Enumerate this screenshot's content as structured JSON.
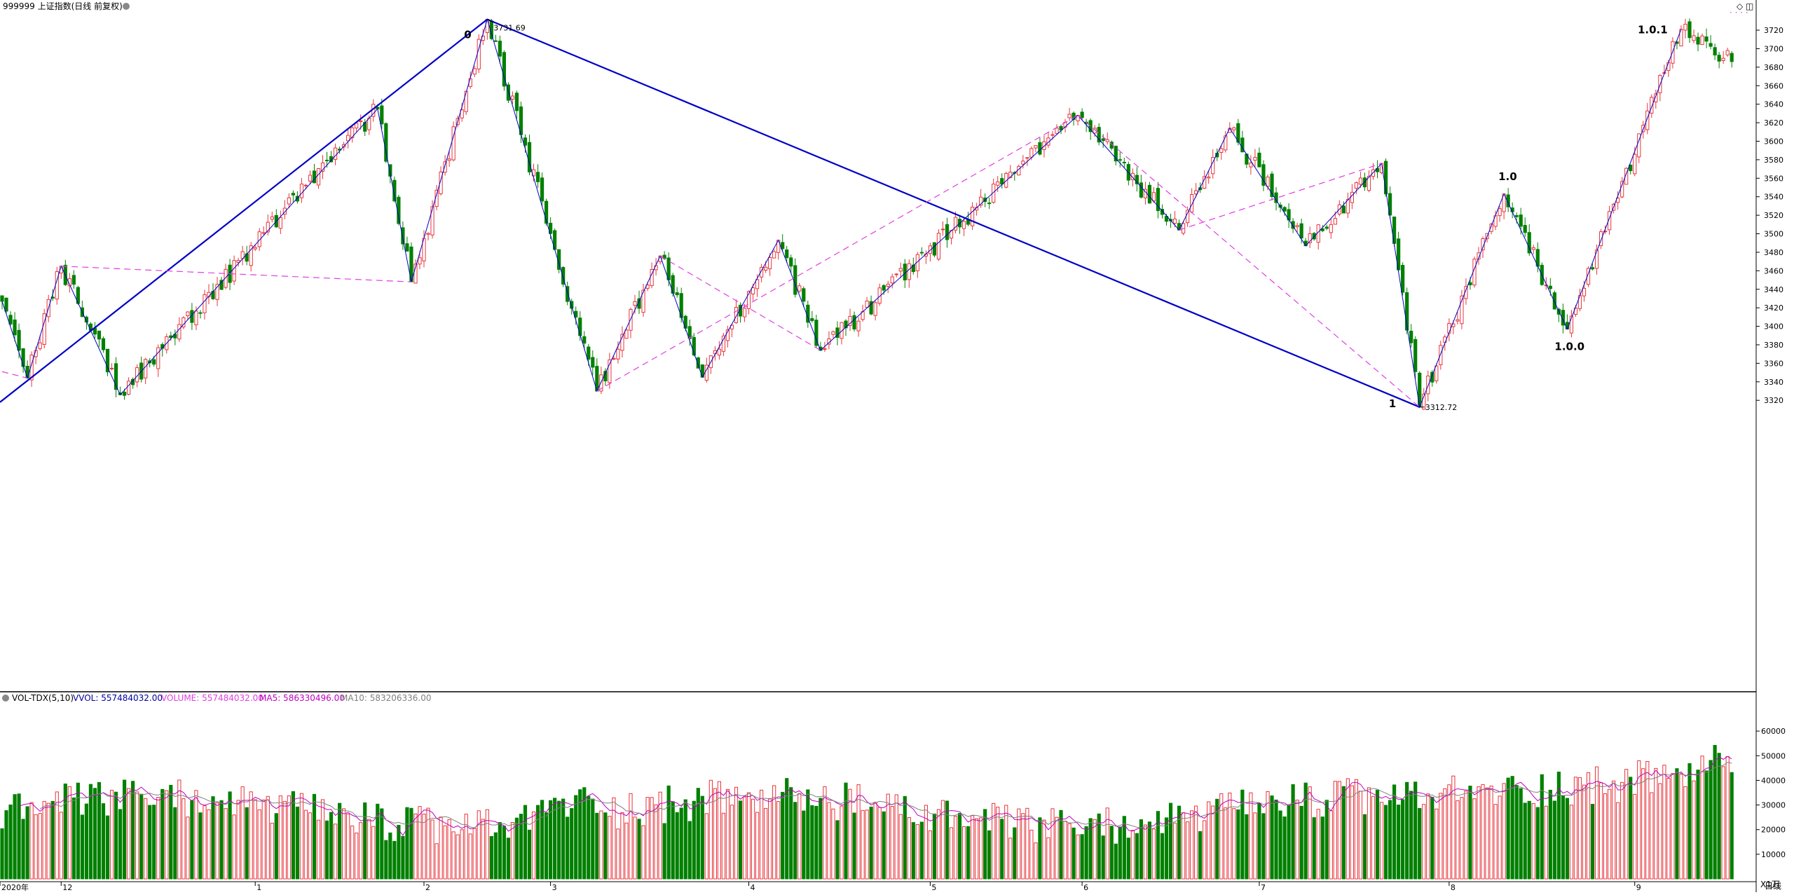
{
  "header": {
    "symbol_title": "999999 上证指数(日线 前复权)",
    "window_controls": "◇ ◫",
    "dots": "· · · ·"
  },
  "volume_header": {
    "indicator": "VOL-TDX(5,10)",
    "vvol": "VVOL: 557484032.00",
    "volume": "VOLUME: 557484032.00",
    "ma5": "MA5: 586330496.00",
    "ma10": "MA10: 583206336.00"
  },
  "price_axis_ticks": [
    "3720",
    "3700",
    "3680",
    "3660",
    "3640",
    "3620",
    "3600",
    "3580",
    "3560",
    "3540",
    "3520",
    "3500",
    "3480",
    "3460",
    "3440",
    "3420",
    "3400",
    "3380",
    "3360",
    "3340",
    "3320"
  ],
  "volume_axis_ticks": [
    "60000",
    "50000",
    "40000",
    "30000",
    "20000",
    "10000"
  ],
  "volume_axis_unit": "X1万",
  "period_label": "日线",
  "date_axis": [
    {
      "label": "2020年",
      "idx": 0
    },
    {
      "label": "12",
      "idx": 14
    },
    {
      "label": "1",
      "idx": 60
    },
    {
      "label": "2",
      "idx": 100
    },
    {
      "label": "3",
      "idx": 130
    },
    {
      "label": "4",
      "idx": 177
    },
    {
      "label": "5",
      "idx": 220
    },
    {
      "label": "6",
      "idx": 256
    },
    {
      "label": "7",
      "idx": 298
    },
    {
      "label": "8",
      "idx": 343
    },
    {
      "label": "9",
      "idx": 387
    }
  ],
  "annotations": {
    "high_value": "3731.69",
    "low_value": "3312.72",
    "wave_0": "0",
    "wave_1": "1",
    "wave_1_0": "1.0",
    "wave_1_0_0": "1.0.0",
    "wave_1_0_1": "1.0.1"
  },
  "colors": {
    "up": "#e8343c",
    "down": "#008000",
    "wave_line": "#0000c8",
    "dashed": "#e040e0",
    "ma5": "#c000c0",
    "ma10": "#808080",
    "axis_text": "#000000",
    "grid": "#c8c8c8"
  },
  "chart_data": [
    {
      "type": "candlestick",
      "title": "999999 上证指数(日线 前复权)",
      "ylim": [
        3305,
        3742
      ],
      "annotated_high": 3731.69,
      "annotated_low": 3312.72,
      "wave_points": [
        {
          "label": "0",
          "idx": 115,
          "price": 3731.69
        },
        {
          "label": "1",
          "idx": 336,
          "price": 3312.72
        },
        {
          "label": "1.0",
          "idx": 356,
          "price": 3543
        },
        {
          "label": "1.0.0",
          "idx": 371,
          "price": 3397
        },
        {
          "label": "1.0.1",
          "idx": 398,
          "price": 3721
        }
      ],
      "pivots": [
        {
          "idx": 0,
          "price": 3427
        },
        {
          "idx": 6,
          "price": 3344
        },
        {
          "idx": 14,
          "price": 3465
        },
        {
          "idx": 28,
          "price": 3326
        },
        {
          "idx": 89,
          "price": 3635
        },
        {
          "idx": 97,
          "price": 3448
        },
        {
          "idx": 115,
          "price": 3731.69
        },
        {
          "idx": 131,
          "price": 3483
        },
        {
          "idx": 141,
          "price": 3330
        },
        {
          "idx": 156,
          "price": 3476
        },
        {
          "idx": 166,
          "price": 3345
        },
        {
          "idx": 184,
          "price": 3493
        },
        {
          "idx": 194,
          "price": 3374
        },
        {
          "idx": 255,
          "price": 3628
        },
        {
          "idx": 279,
          "price": 3504
        },
        {
          "idx": 291,
          "price": 3614
        },
        {
          "idx": 309,
          "price": 3487
        },
        {
          "idx": 327,
          "price": 3576
        },
        {
          "idx": 336,
          "price": 3312.72
        },
        {
          "idx": 356,
          "price": 3543
        },
        {
          "idx": 371,
          "price": 3397
        },
        {
          "idx": 398,
          "price": 3721
        }
      ]
    },
    {
      "type": "bar",
      "title": "VOL-TDX(5,10)",
      "unit": "X1万",
      "ylim": [
        0,
        70000
      ],
      "series": [
        {
          "name": "VOLUME",
          "last": 557484032.0
        },
        {
          "name": "MA5",
          "last": 586330496.0
        },
        {
          "name": "MA10",
          "last": 583206336.0
        }
      ]
    }
  ]
}
